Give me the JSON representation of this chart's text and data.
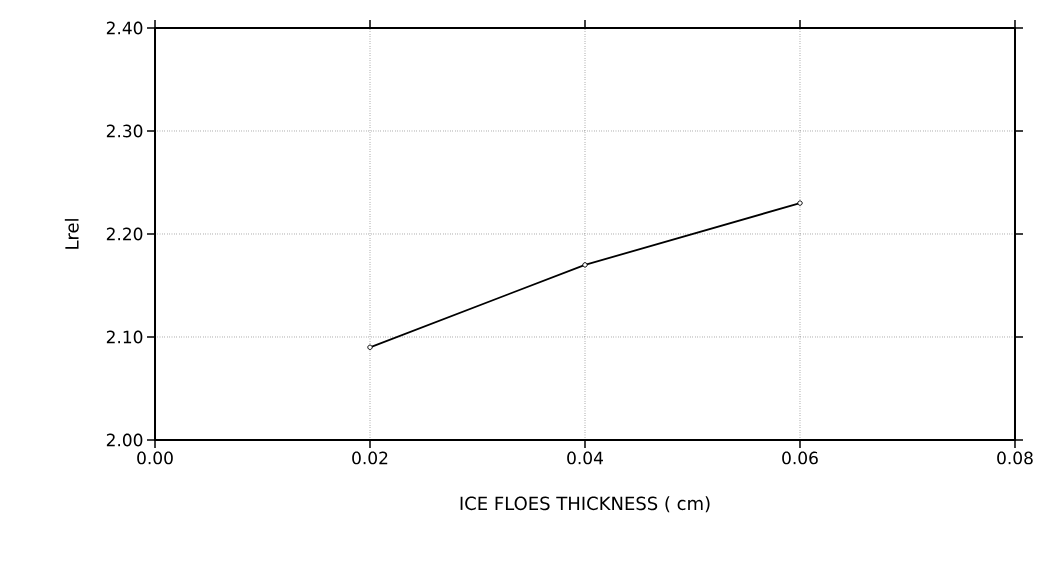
{
  "chart_data": {
    "type": "line",
    "xlabel": "ICE FLOES THICKNESS ( cm)",
    "ylabel": "Lrel",
    "x": [
      0.02,
      0.04,
      0.06
    ],
    "values": [
      2.09,
      2.17,
      2.23
    ],
    "color": "#000000",
    "xlim": [
      0,
      0.08
    ],
    "ylim": [
      2.0,
      2.4
    ],
    "xticks": [
      {
        "value": 0,
        "label": "0.00"
      },
      0.02,
      0.04,
      0.06,
      0.08
    ],
    "yticks": [
      {
        "value": 2.0,
        "label": "2.00"
      },
      {
        "value": 2.1,
        "label": "2.10"
      },
      {
        "value": 2.2,
        "label": "2.20"
      },
      {
        "value": 2.3,
        "label": "2.30"
      },
      {
        "value": 2.4,
        "label": "2.40"
      }
    ],
    "grid": true,
    "marker": "circle",
    "line_style": "solid"
  }
}
